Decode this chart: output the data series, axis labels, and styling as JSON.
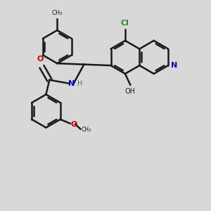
{
  "bg_color": "#d8d8d8",
  "bond_color": "#1a1a1a",
  "bond_width": 1.8,
  "figsize": [
    3.0,
    3.0
  ],
  "dpi": 100,
  "xlim": [
    -2.8,
    3.2
  ],
  "ylim": [
    -3.2,
    2.8
  ]
}
